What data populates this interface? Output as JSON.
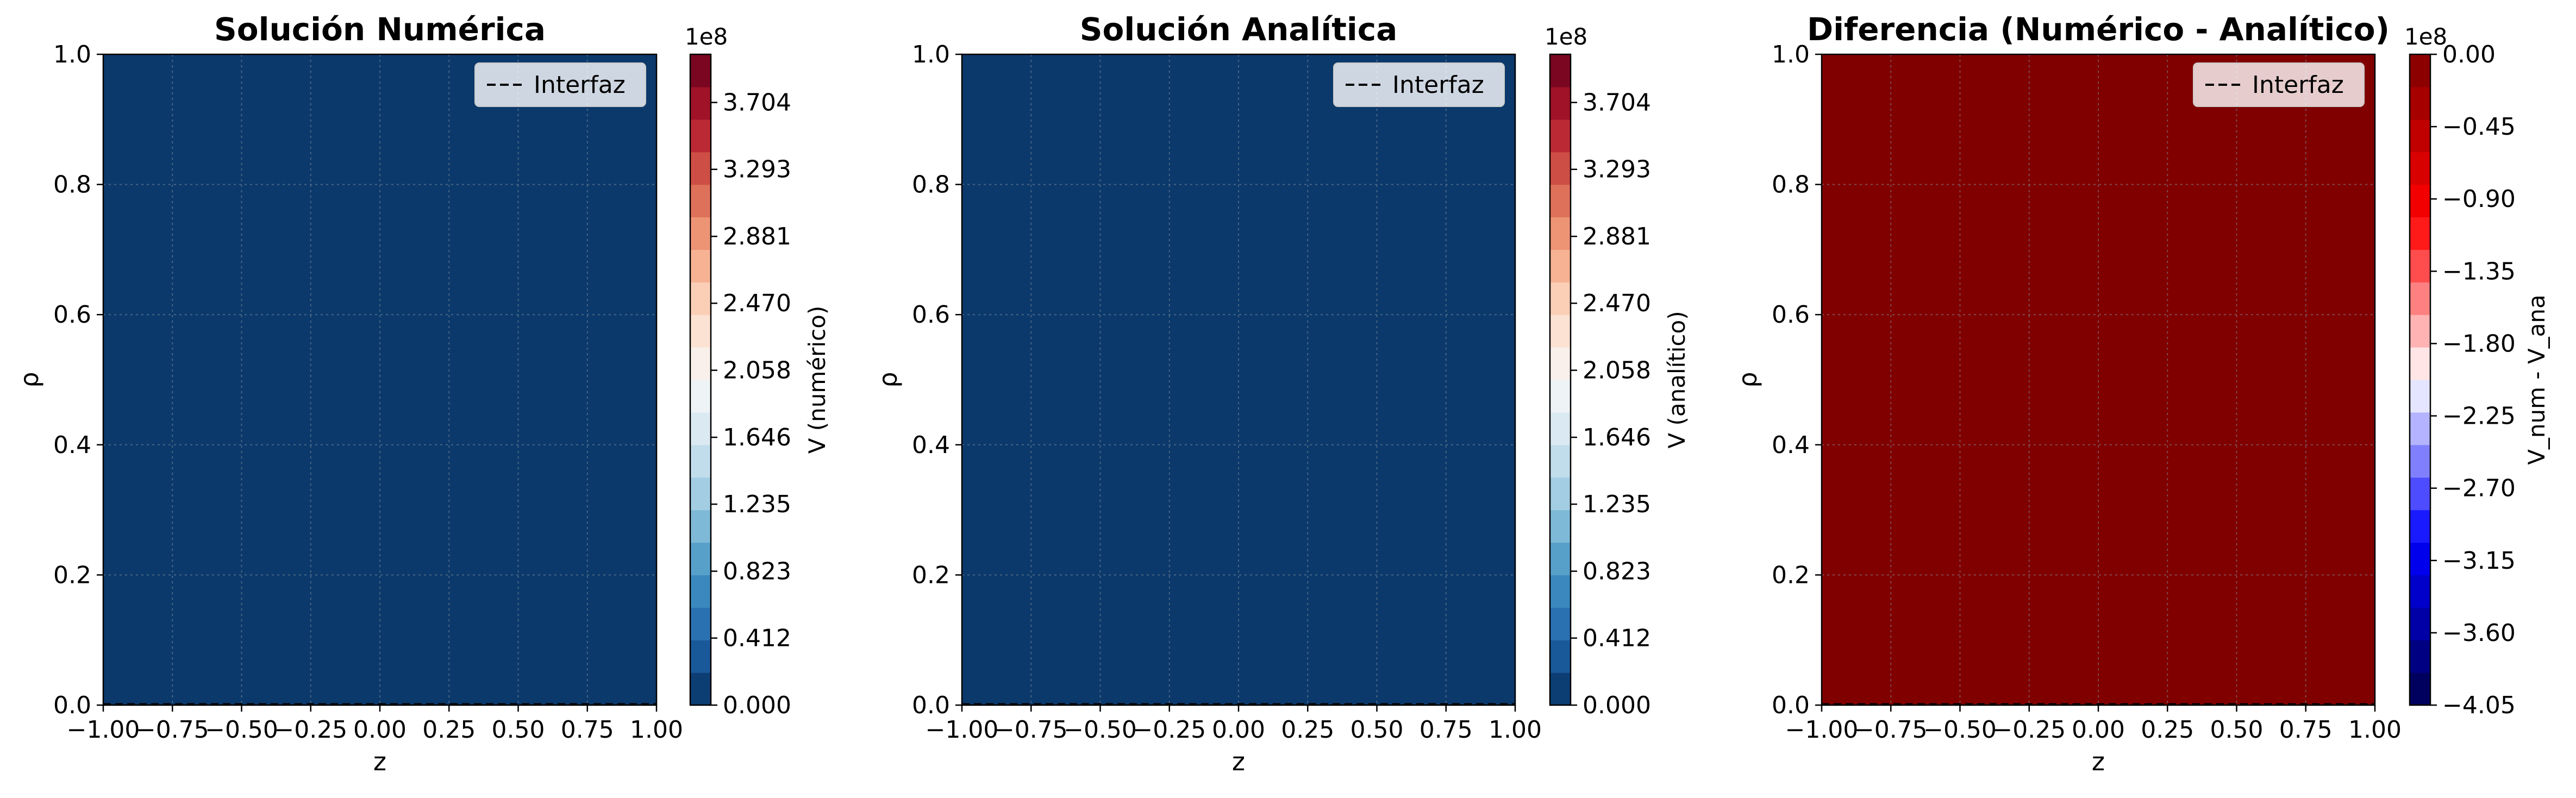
{
  "chart_data": [
    {
      "type": "heatmap",
      "title": "Solución Numérica",
      "xlabel": "z",
      "ylabel": "ρ",
      "xlim": [
        -1.0,
        1.0
      ],
      "ylim": [
        0.0,
        1.0
      ],
      "xticks": [
        "−1.00",
        "−0.75",
        "−0.50",
        "−0.25",
        "0.00",
        "0.25",
        "0.50",
        "0.75",
        "1.00"
      ],
      "yticks": [
        "0.0",
        "0.2",
        "0.4",
        "0.6",
        "0.8",
        "1.0"
      ],
      "grid": true,
      "legend": {
        "placement": "upper right",
        "entries": [
          {
            "label": "Interfaz",
            "style": "dashed",
            "color": "#000000"
          }
        ]
      },
      "field_color": "#0b396b",
      "colorbar": {
        "label": "V (numérico)",
        "multiplier": "1e8",
        "colormap": "RdBu_r",
        "range": [
          0.0,
          4.0
        ],
        "ticks": [
          "0.000",
          "0.412",
          "0.823",
          "1.235",
          "1.646",
          "2.058",
          "2.470",
          "2.881",
          "3.293",
          "3.704"
        ]
      }
    },
    {
      "type": "heatmap",
      "title": "Solución Analítica",
      "xlabel": "z",
      "ylabel": "ρ",
      "xlim": [
        -1.0,
        1.0
      ],
      "ylim": [
        0.0,
        1.0
      ],
      "xticks": [
        "−1.00",
        "−0.75",
        "−0.50",
        "−0.25",
        "0.00",
        "0.25",
        "0.50",
        "0.75",
        "1.00"
      ],
      "yticks": [
        "0.0",
        "0.2",
        "0.4",
        "0.6",
        "0.8",
        "1.0"
      ],
      "grid": true,
      "legend": {
        "placement": "upper right",
        "entries": [
          {
            "label": "Interfaz",
            "style": "dashed",
            "color": "#000000"
          }
        ]
      },
      "field_color": "#0b396b",
      "colorbar": {
        "label": "V (analítico)",
        "multiplier": "1e8",
        "colormap": "RdBu_r",
        "range": [
          0.0,
          4.0
        ],
        "ticks": [
          "0.000",
          "0.412",
          "0.823",
          "1.235",
          "1.646",
          "2.058",
          "2.470",
          "2.881",
          "3.293",
          "3.704"
        ]
      }
    },
    {
      "type": "heatmap",
      "title": "Diferencia (Numérico - Analítico)",
      "xlabel": "z",
      "ylabel": "ρ",
      "xlim": [
        -1.0,
        1.0
      ],
      "ylim": [
        0.0,
        1.0
      ],
      "xticks": [
        "−1.00",
        "−0.75",
        "−0.50",
        "−0.25",
        "0.00",
        "0.25",
        "0.50",
        "0.75",
        "1.00"
      ],
      "yticks": [
        "0.0",
        "0.2",
        "0.4",
        "0.6",
        "0.8",
        "1.0"
      ],
      "grid": true,
      "legend": {
        "placement": "upper right",
        "entries": [
          {
            "label": "Interfaz",
            "style": "dashed",
            "color": "#000000"
          }
        ]
      },
      "field_color": "#800000",
      "colorbar": {
        "label": "V_num - V_ana",
        "multiplier": "1e8",
        "colormap": "seismic",
        "range": [
          -4.05,
          0.0
        ],
        "ticks": [
          "−4.05",
          "−3.60",
          "−3.15",
          "−2.70",
          "−2.25",
          "−1.80",
          "−1.35",
          "−0.90",
          "−0.45",
          "0.00"
        ]
      }
    }
  ]
}
